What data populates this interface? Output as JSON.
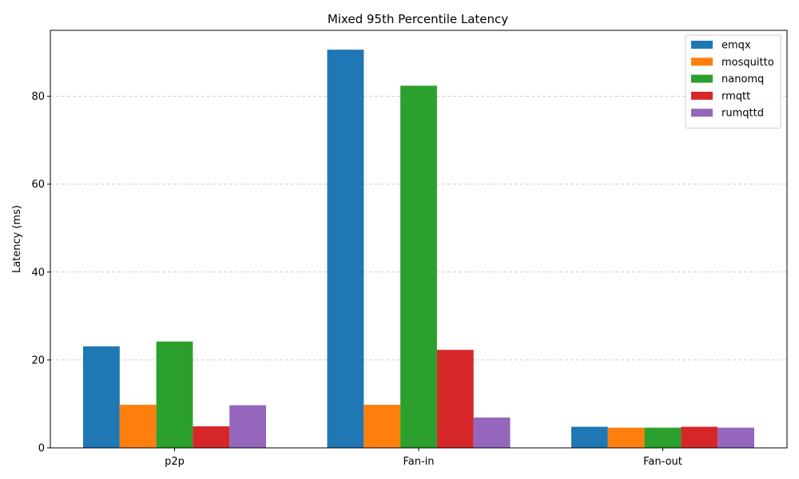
{
  "chart_data": {
    "type": "bar",
    "title": "Mixed 95th Percentile Latency",
    "xlabel": "",
    "ylabel": "Latency (ms)",
    "categories": [
      "p2p",
      "Fan-in",
      "Fan-out"
    ],
    "ylim": [
      0,
      95
    ],
    "yticks": [
      0,
      20,
      40,
      60,
      80
    ],
    "grid": "y-dashed",
    "legend_position": "top-right",
    "series": [
      {
        "name": "emqx",
        "color": "#1f77b4",
        "values": [
          23.1,
          90.6,
          4.8
        ]
      },
      {
        "name": "mosquitto",
        "color": "#ff7f0e",
        "values": [
          9.8,
          9.8,
          4.6
        ]
      },
      {
        "name": "nanomq",
        "color": "#2ca02c",
        "values": [
          24.2,
          82.4,
          4.6
        ]
      },
      {
        "name": "rmqtt",
        "color": "#d62728",
        "values": [
          4.9,
          22.3,
          4.8
        ]
      },
      {
        "name": "rumqttd",
        "color": "#9467bd",
        "values": [
          9.7,
          6.9,
          4.6
        ]
      }
    ]
  }
}
